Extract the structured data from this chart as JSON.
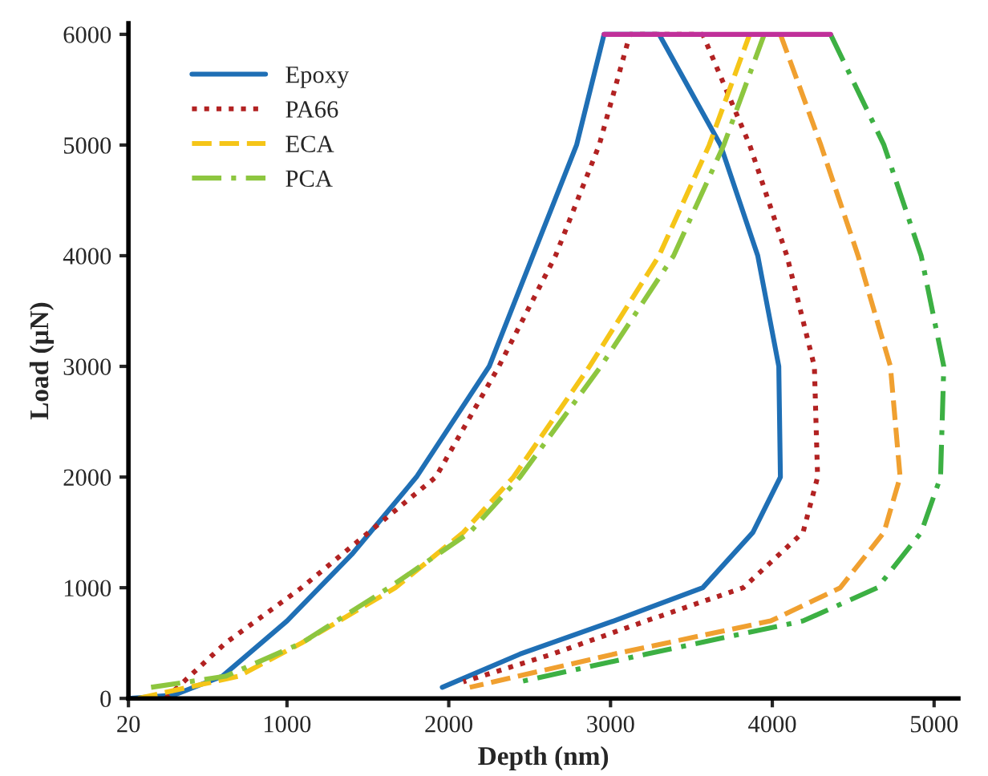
{
  "chart_data": {
    "type": "line",
    "xlabel": "Depth (nm)",
    "ylabel": "Load (μN)",
    "xlim": [
      20,
      5150
    ],
    "ylim": [
      0,
      6100
    ],
    "xticks": [
      20,
      1000,
      2000,
      3000,
      4000,
      5000
    ],
    "yticks": [
      0,
      1000,
      2000,
      3000,
      4000,
      5000,
      6000
    ],
    "grid": false,
    "legend": "top left",
    "series": [
      {
        "name": "Epoxy",
        "color": "#1f6fb5",
        "line_style": "solid",
        "x": [
          20,
          300,
          600,
          1000,
          1400,
          1800,
          2250,
          2520,
          2790,
          2960,
          3300,
          3680,
          3910,
          4040,
          4050,
          3880,
          3570,
          3020,
          2440,
          1960
        ],
        "values": [
          0,
          30,
          200,
          700,
          1300,
          2000,
          3000,
          4000,
          5000,
          6000,
          6000,
          5000,
          4000,
          3000,
          2000,
          1500,
          1000,
          700,
          400,
          100
        ]
      },
      {
        "name": "PA66",
        "color": "#b22222",
        "line_style": "dotted",
        "x": [
          250,
          620,
          1090,
          1920,
          2310,
          2660,
          2930,
          3120,
          3570,
          3860,
          4090,
          4260,
          4280,
          4190,
          3820,
          3220,
          2640,
          2090
        ],
        "values": [
          0,
          500,
          1000,
          2000,
          3000,
          4000,
          5000,
          6000,
          6000,
          5000,
          4000,
          3000,
          2000,
          1500,
          1000,
          700,
          400,
          150
        ]
      },
      {
        "name": "ECA",
        "color": "#f5c518",
        "line_style": "dashed",
        "x": [
          80,
          700,
          1090,
          1670,
          2090,
          2400,
          2870,
          3300,
          3610,
          3860
        ],
        "values": [
          0,
          200,
          500,
          1000,
          1500,
          2000,
          3000,
          4000,
          5000,
          6000
        ]
      },
      {
        "color": "#f0a030",
        "line_style": "dashed",
        "x": [
          4050,
          4300,
          4530,
          4730,
          4790,
          4690,
          4420,
          3990,
          3020,
          2130
        ],
        "values": [
          6000,
          5000,
          4000,
          3000,
          2000,
          1500,
          1000,
          700,
          400,
          100
        ]
      },
      {
        "name": "PCA",
        "color": "#8dc63f",
        "line_style": "dashdot",
        "x": [
          160,
          620,
          1090,
          1630,
          2130,
          2440,
          2940,
          3390,
          3700,
          3950
        ],
        "values": [
          100,
          200,
          500,
          1000,
          1500,
          2000,
          3000,
          4000,
          5000,
          6000
        ]
      },
      {
        "color": "#3cb043",
        "line_style": "dashdot",
        "x": [
          4360,
          4690,
          4920,
          5060,
          5040,
          4920,
          4650,
          4190,
          3220,
          2440
        ],
        "values": [
          6000,
          5000,
          4000,
          3000,
          2000,
          1500,
          1000,
          700,
          400,
          150
        ]
      },
      {
        "color": "#c0309a",
        "line_style": "solid",
        "x": [
          2960,
          4360
        ],
        "values": [
          6000,
          6000
        ]
      }
    ]
  }
}
